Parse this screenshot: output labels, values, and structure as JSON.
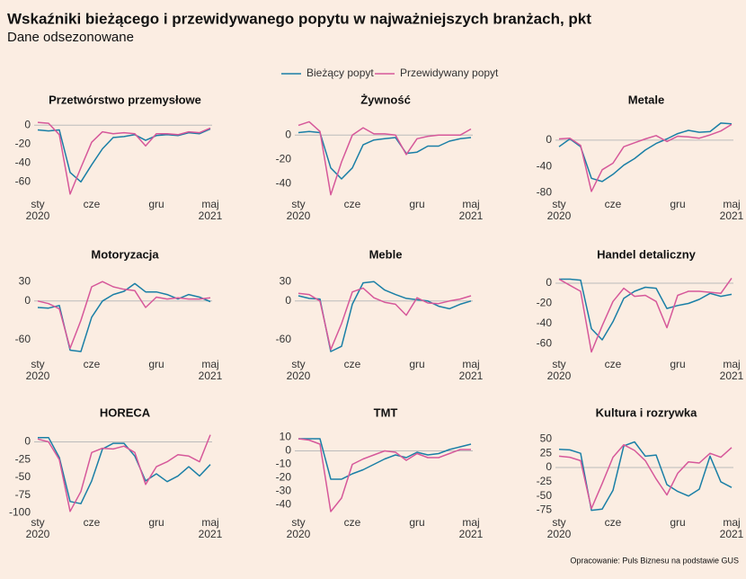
{
  "title": "Wskaźniki bieżącego i przewidywanego popytu w najważniejszych branżach, pkt",
  "subtitle": "Dane odsezonowane",
  "source": "Opracowanie: Puls Biznesu na podstawie GUS",
  "chart_data": [
    {
      "type": "line",
      "title": "Przetwórstwo przemysłowe",
      "categories": [
        "sty 2020",
        null,
        null,
        null,
        null,
        "cze",
        null,
        null,
        null,
        null,
        null,
        "gru",
        null,
        null,
        null,
        null,
        "maj 2021"
      ],
      "ylim": [
        -75,
        5
      ],
      "yticks": [
        0,
        -20,
        -40,
        -60
      ],
      "series": [
        {
          "name": "Bieżący popyt",
          "color": "#1a7fa6",
          "values": [
            -5,
            -6,
            -5,
            -50,
            -60,
            -42,
            -25,
            -13,
            -12,
            -10,
            -16,
            -11,
            -10,
            -11,
            -8,
            -9,
            -4
          ]
        },
        {
          "name": "Przewidywany popyt",
          "color": "#d6589a",
          "values": [
            3,
            2,
            -10,
            -73,
            -45,
            -18,
            -7,
            -9,
            -8,
            -9,
            -22,
            -9,
            -9,
            -10,
            -7,
            -8,
            -3
          ]
        }
      ]
    },
    {
      "type": "line",
      "title": "Żywność",
      "categories": [
        "sty 2020",
        null,
        null,
        null,
        null,
        "cze",
        null,
        null,
        null,
        null,
        null,
        "gru",
        null,
        null,
        null,
        null,
        "maj 2021"
      ],
      "ylim": [
        -50,
        12
      ],
      "yticks": [
        0,
        -20,
        -40
      ],
      "series": [
        {
          "name": "Bieżący popyt",
          "color": "#1a7fa6",
          "values": [
            2,
            3,
            2,
            -27,
            -36,
            -27,
            -8,
            -4,
            -3,
            -2,
            -15,
            -14,
            -9,
            -9,
            -5,
            -3,
            -2
          ]
        },
        {
          "name": "Przewidywany popyt",
          "color": "#d6589a",
          "values": [
            8,
            11,
            3,
            -49,
            -22,
            0,
            6,
            1,
            1,
            0,
            -16,
            -3,
            -1,
            0,
            0,
            0,
            5
          ]
        }
      ]
    },
    {
      "type": "line",
      "title": "Metale",
      "categories": [
        "sty 2020",
        null,
        null,
        null,
        null,
        "cze",
        null,
        null,
        null,
        null,
        null,
        "gru",
        null,
        null,
        null,
        null,
        "maj 2021"
      ],
      "ylim": [
        -85,
        30
      ],
      "yticks": [
        0,
        -40,
        -80
      ],
      "series": [
        {
          "name": "Bieżący popyt",
          "color": "#1a7fa6",
          "values": [
            -10,
            2,
            -10,
            -58,
            -63,
            -52,
            -38,
            -28,
            -15,
            -5,
            2,
            10,
            15,
            12,
            13,
            26,
            25
          ]
        },
        {
          "name": "Przewidywany popyt",
          "color": "#d6589a",
          "values": [
            2,
            3,
            -8,
            -78,
            -45,
            -35,
            -10,
            -4,
            2,
            7,
            -2,
            6,
            5,
            3,
            8,
            14,
            24
          ]
        }
      ]
    },
    {
      "type": "line",
      "title": "Motoryzacja",
      "categories": [
        "sty 2020",
        null,
        null,
        null,
        null,
        "cze",
        null,
        null,
        null,
        null,
        null,
        "gru",
        null,
        null,
        null,
        null,
        "maj 2021"
      ],
      "ylim": [
        -85,
        40
      ],
      "yticks": [
        30,
        0,
        -60
      ],
      "series": [
        {
          "name": "Bieżący popyt",
          "color": "#1a7fa6",
          "values": [
            -10,
            -11,
            -7,
            -76,
            -78,
            -25,
            0,
            10,
            15,
            27,
            14,
            14,
            10,
            3,
            10,
            6,
            -1
          ]
        },
        {
          "name": "Przewidywany popyt",
          "color": "#d6589a",
          "values": [
            0,
            -4,
            -12,
            -73,
            -30,
            22,
            30,
            22,
            18,
            16,
            -10,
            6,
            3,
            5,
            3,
            3,
            5
          ]
        }
      ]
    },
    {
      "type": "line",
      "title": "Meble",
      "categories": [
        "sty 2020",
        null,
        null,
        null,
        null,
        "cze",
        null,
        null,
        null,
        null,
        null,
        "gru",
        null,
        null,
        null,
        null,
        "maj 2021"
      ],
      "ylim": [
        -85,
        40
      ],
      "yticks": [
        30,
        0,
        -60
      ],
      "series": [
        {
          "name": "Bieżący popyt",
          "color": "#1a7fa6",
          "values": [
            8,
            4,
            3,
            -78,
            -70,
            -5,
            28,
            30,
            17,
            10,
            4,
            2,
            0,
            -8,
            -12,
            -5,
            0
          ]
        },
        {
          "name": "Przewidywany popyt",
          "color": "#d6589a",
          "values": [
            12,
            10,
            0,
            -75,
            -35,
            14,
            20,
            5,
            -2,
            -5,
            -22,
            5,
            -3,
            -4,
            0,
            3,
            8
          ]
        }
      ]
    },
    {
      "type": "line",
      "title": "Handel detaliczny",
      "categories": [
        "sty 2020",
        null,
        null,
        null,
        null,
        "cze",
        null,
        null,
        null,
        null,
        null,
        "gru",
        null,
        null,
        null,
        null,
        "maj 2021"
      ],
      "ylim": [
        -72,
        8
      ],
      "yticks": [
        0,
        -20,
        -40,
        -60
      ],
      "series": [
        {
          "name": "Bieżący popyt",
          "color": "#1a7fa6",
          "values": [
            4,
            4,
            3,
            -45,
            -56,
            -38,
            -15,
            -8,
            -4,
            -5,
            -25,
            -22,
            -20,
            -16,
            -10,
            -13,
            -11
          ]
        },
        {
          "name": "Przewidywany popyt",
          "color": "#d6589a",
          "values": [
            4,
            -2,
            -8,
            -68,
            -42,
            -18,
            -5,
            -13,
            -12,
            -18,
            -44,
            -12,
            -8,
            -8,
            -9,
            -10,
            5
          ]
        }
      ]
    },
    {
      "type": "line",
      "title": "HORECA",
      "categories": [
        "sty 2020",
        null,
        null,
        null,
        null,
        "cze",
        null,
        null,
        null,
        null,
        null,
        "gru",
        null,
        null,
        null,
        null,
        "maj 2021"
      ],
      "ylim": [
        -102,
        12
      ],
      "yticks": [
        0,
        -25,
        -50,
        -75,
        -100
      ],
      "series": [
        {
          "name": "Bieżący popyt",
          "color": "#1a7fa6",
          "values": [
            6,
            6,
            -22,
            -84,
            -87,
            -55,
            -10,
            -2,
            -2,
            -20,
            -55,
            -45,
            -56,
            -48,
            -35,
            -48,
            -32
          ]
        },
        {
          "name": "Przewidywany popyt",
          "color": "#d6589a",
          "values": [
            4,
            0,
            -25,
            -98,
            -70,
            -15,
            -9,
            -10,
            -6,
            -15,
            -60,
            -35,
            -28,
            -18,
            -20,
            -28,
            10
          ]
        }
      ]
    },
    {
      "type": "line",
      "title": "TMT",
      "categories": [
        "sty 2020",
        null,
        null,
        null,
        null,
        "cze",
        null,
        null,
        null,
        null,
        null,
        "gru",
        null,
        null,
        null,
        null,
        "maj 2021"
      ],
      "ylim": [
        -47,
        13
      ],
      "yticks": [
        10,
        0,
        -10,
        -20,
        -30,
        -40
      ],
      "series": [
        {
          "name": "Bieżący popyt",
          "color": "#1a7fa6",
          "values": [
            9,
            9,
            9,
            -21,
            -21,
            -17,
            -14,
            -10,
            -6,
            -3,
            -5,
            -1,
            -3,
            -2,
            1,
            3,
            5
          ]
        },
        {
          "name": "Przewidywany popyt",
          "color": "#d6589a",
          "values": [
            9,
            8,
            5,
            -45,
            -35,
            -10,
            -6,
            -3,
            0,
            -1,
            -7,
            -2,
            -5,
            -5,
            -2,
            1,
            1
          ]
        }
      ]
    },
    {
      "type": "line",
      "title": "Kultura i rozrywka",
      "categories": [
        "sty 2020",
        null,
        null,
        null,
        null,
        "cze",
        null,
        null,
        null,
        null,
        null,
        "gru",
        null,
        null,
        null,
        null,
        "maj 2021"
      ],
      "ylim": [
        -82,
        60
      ],
      "yticks": [
        50,
        25,
        0,
        -25,
        -50,
        -75
      ],
      "series": [
        {
          "name": "Bieżący popyt",
          "color": "#1a7fa6",
          "values": [
            32,
            31,
            25,
            -75,
            -73,
            -40,
            38,
            45,
            20,
            22,
            -30,
            -42,
            -50,
            -38,
            20,
            -25,
            -35
          ]
        },
        {
          "name": "Przewidywany popyt",
          "color": "#d6589a",
          "values": [
            20,
            18,
            12,
            -72,
            -28,
            18,
            40,
            30,
            12,
            -20,
            -48,
            -10,
            10,
            8,
            25,
            18,
            35
          ]
        }
      ]
    }
  ]
}
